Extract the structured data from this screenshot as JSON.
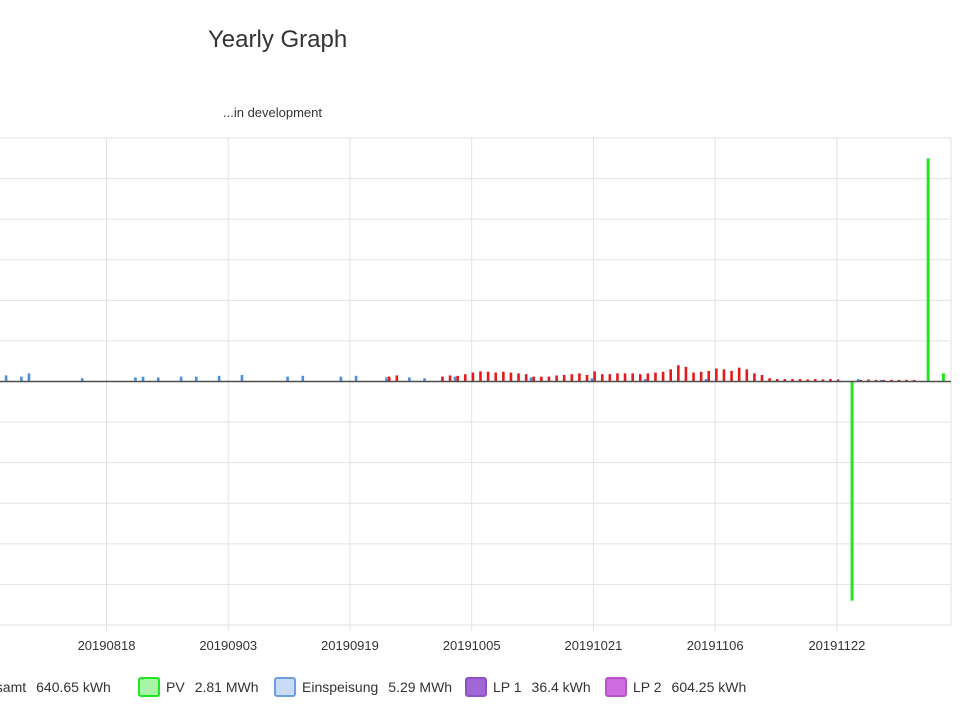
{
  "header": {
    "title": "Yearly Graph",
    "subtitle": "...in development"
  },
  "legend": [
    {
      "label": "esamt",
      "value": "640.65 kWh",
      "fill": "#ffffff",
      "stroke": "#ffffff"
    },
    {
      "label": "PV",
      "value": "2.81 MWh",
      "fill": "#a8f5a8",
      "stroke": "#1fe81f"
    },
    {
      "label": "Einspeisung",
      "value": "5.29 MWh",
      "fill": "#c9dbf6",
      "stroke": "#6c9fdf"
    },
    {
      "label": "LP 1",
      "value": "36.4 kWh",
      "fill": "#a267d6",
      "stroke": "#8b53c4"
    },
    {
      "label": "LP 2",
      "value": "604.25 kWh",
      "fill": "#cf6be0",
      "stroke": "#b653c8"
    }
  ],
  "chart_data": {
    "type": "bar",
    "x_ticks": [
      "20190818",
      "20190903",
      "20190919",
      "20191005",
      "20191021",
      "20191106",
      "20191122"
    ],
    "x_range": [
      "20190804",
      "20191207"
    ],
    "y_range": [
      -6,
      6
    ],
    "grid": true,
    "legend_position": "bottom",
    "series": [
      {
        "name": "PV",
        "color": "#1fe81f",
        "points": [
          {
            "x": "20191124",
            "y": -5.4
          },
          {
            "x": "20191204",
            "y": 5.5
          },
          {
            "x": "20191206",
            "y": 0.2
          }
        ]
      },
      {
        "name": "Einspeisung",
        "color": "#4a90e2",
        "points": [
          {
            "x": "20190805",
            "y": 0.15
          },
          {
            "x": "20190807",
            "y": 0.12
          },
          {
            "x": "20190808",
            "y": 0.2
          },
          {
            "x": "20190815",
            "y": 0.08
          },
          {
            "x": "20190822",
            "y": 0.1
          },
          {
            "x": "20190823",
            "y": 0.12
          },
          {
            "x": "20190825",
            "y": 0.1
          },
          {
            "x": "20190828",
            "y": 0.12
          },
          {
            "x": "20190830",
            "y": 0.12
          },
          {
            "x": "20190902",
            "y": 0.14
          },
          {
            "x": "20190905",
            "y": 0.16
          },
          {
            "x": "20190911",
            "y": 0.12
          },
          {
            "x": "20190913",
            "y": 0.14
          },
          {
            "x": "20190918",
            "y": 0.12
          },
          {
            "x": "20190920",
            "y": 0.14
          },
          {
            "x": "20190924",
            "y": 0.1
          },
          {
            "x": "20190927",
            "y": 0.1
          },
          {
            "x": "20190929",
            "y": 0.08
          },
          {
            "x": "20191003",
            "y": 0.12
          },
          {
            "x": "20191013",
            "y": 0.1
          },
          {
            "x": "20191021",
            "y": 0.08
          },
          {
            "x": "20191028",
            "y": 0.06
          },
          {
            "x": "20191105",
            "y": 0.06
          },
          {
            "x": "20191125",
            "y": 0.06
          },
          {
            "x": "20191128",
            "y": 0.04
          }
        ]
      },
      {
        "name": "LP 2",
        "color": "#e41a1c",
        "points": [
          {
            "x": "20190924",
            "y": 0.12
          },
          {
            "x": "20190925",
            "y": 0.15
          },
          {
            "x": "20191001",
            "y": 0.12
          },
          {
            "x": "20191002",
            "y": 0.15
          },
          {
            "x": "20191003",
            "y": 0.14
          },
          {
            "x": "20191004",
            "y": 0.18
          },
          {
            "x": "20191005",
            "y": 0.22
          },
          {
            "x": "20191006",
            "y": 0.25
          },
          {
            "x": "20191007",
            "y": 0.24
          },
          {
            "x": "20191008",
            "y": 0.22
          },
          {
            "x": "20191009",
            "y": 0.24
          },
          {
            "x": "20191010",
            "y": 0.22
          },
          {
            "x": "20191011",
            "y": 0.2
          },
          {
            "x": "20191012",
            "y": 0.18
          },
          {
            "x": "20191013",
            "y": 0.12
          },
          {
            "x": "20191014",
            "y": 0.12
          },
          {
            "x": "20191015",
            "y": 0.12
          },
          {
            "x": "20191016",
            "y": 0.15
          },
          {
            "x": "20191017",
            "y": 0.16
          },
          {
            "x": "20191018",
            "y": 0.18
          },
          {
            "x": "20191019",
            "y": 0.2
          },
          {
            "x": "20191020",
            "y": 0.16
          },
          {
            "x": "20191021",
            "y": 0.25
          },
          {
            "x": "20191022",
            "y": 0.18
          },
          {
            "x": "20191023",
            "y": 0.18
          },
          {
            "x": "20191024",
            "y": 0.2
          },
          {
            "x": "20191025",
            "y": 0.2
          },
          {
            "x": "20191026",
            "y": 0.2
          },
          {
            "x": "20191027",
            "y": 0.18
          },
          {
            "x": "20191028",
            "y": 0.2
          },
          {
            "x": "20191029",
            "y": 0.22
          },
          {
            "x": "20191030",
            "y": 0.24
          },
          {
            "x": "20191031",
            "y": 0.3
          },
          {
            "x": "20191101",
            "y": 0.4
          },
          {
            "x": "20191102",
            "y": 0.36
          },
          {
            "x": "20191103",
            "y": 0.22
          },
          {
            "x": "20191104",
            "y": 0.24
          },
          {
            "x": "20191105",
            "y": 0.26
          },
          {
            "x": "20191106",
            "y": 0.32
          },
          {
            "x": "20191107",
            "y": 0.3
          },
          {
            "x": "20191108",
            "y": 0.26
          },
          {
            "x": "20191109",
            "y": 0.34
          },
          {
            "x": "20191110",
            "y": 0.3
          },
          {
            "x": "20191111",
            "y": 0.2
          },
          {
            "x": "20191112",
            "y": 0.16
          },
          {
            "x": "20191113",
            "y": 0.08
          },
          {
            "x": "20191114",
            "y": 0.06
          },
          {
            "x": "20191115",
            "y": 0.06
          },
          {
            "x": "20191116",
            "y": 0.06
          },
          {
            "x": "20191117",
            "y": 0.06
          },
          {
            "x": "20191118",
            "y": 0.05
          },
          {
            "x": "20191119",
            "y": 0.06
          },
          {
            "x": "20191120",
            "y": 0.05
          },
          {
            "x": "20191121",
            "y": 0.06
          },
          {
            "x": "20191122",
            "y": 0.05
          },
          {
            "x": "20191125",
            "y": 0.04
          },
          {
            "x": "20191126",
            "y": 0.05
          },
          {
            "x": "20191127",
            "y": 0.04
          },
          {
            "x": "20191128",
            "y": 0.04
          },
          {
            "x": "20191129",
            "y": 0.04
          },
          {
            "x": "20191130",
            "y": 0.04
          },
          {
            "x": "20191201",
            "y": 0.04
          },
          {
            "x": "20191202",
            "y": 0.04
          }
        ]
      }
    ]
  }
}
